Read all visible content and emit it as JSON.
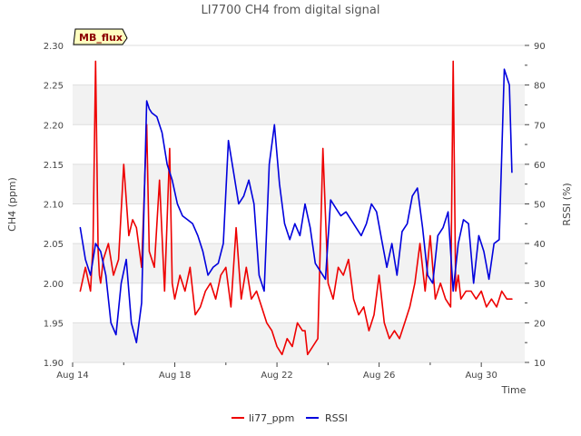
{
  "chart_data": {
    "type": "line",
    "title": "LI7700 CH4 from digital signal",
    "badge": "MB_flux",
    "xlabel": "Time",
    "ylabel": "CH4 (ppm)",
    "y2label": "RSSI (%)",
    "xlim": [
      14,
      31.7
    ],
    "ylim": [
      1.9,
      2.3
    ],
    "y2lim": [
      10,
      90
    ],
    "x_ticks": [
      {
        "value": 14,
        "label": "Aug 14"
      },
      {
        "value": 18,
        "label": "Aug 18"
      },
      {
        "value": 22,
        "label": "Aug 22"
      },
      {
        "value": 26,
        "label": "Aug 26"
      },
      {
        "value": 30,
        "label": "Aug 30"
      }
    ],
    "y_ticks": [
      "1.90",
      "1.95",
      "2.00",
      "2.05",
      "2.10",
      "2.15",
      "2.20",
      "2.25",
      "2.30"
    ],
    "y2_ticks": [
      "10",
      "20",
      "30",
      "40",
      "50",
      "60",
      "70",
      "80",
      "90"
    ],
    "colors": {
      "li77_ppm": "#ee0000",
      "RSSI": "#0000dd",
      "band": "#f2f2f2",
      "badge_fill": "#ffffc0",
      "badge_text": "#8b0000"
    },
    "legend_position": "bottom-center",
    "series": [
      {
        "name": "li77_ppm",
        "axis": "left",
        "x": [
          14.3,
          14.5,
          14.7,
          14.8,
          14.9,
          15.0,
          15.05,
          15.1,
          15.2,
          15.4,
          15.6,
          15.8,
          16.0,
          16.2,
          16.35,
          16.5,
          16.7,
          16.9,
          17.0,
          17.2,
          17.4,
          17.6,
          17.8,
          17.9,
          18.0,
          18.2,
          18.4,
          18.6,
          18.8,
          19.0,
          19.2,
          19.4,
          19.6,
          19.8,
          20.0,
          20.2,
          20.4,
          20.6,
          20.8,
          21.0,
          21.2,
          21.4,
          21.6,
          21.8,
          22.0,
          22.2,
          22.4,
          22.6,
          22.8,
          23.0,
          23.1,
          23.2,
          23.4,
          23.6,
          23.8,
          24.0,
          24.2,
          24.4,
          24.6,
          24.8,
          25.0,
          25.2,
          25.4,
          25.6,
          25.8,
          26.0,
          26.2,
          26.4,
          26.6,
          26.8,
          27.0,
          27.2,
          27.4,
          27.6,
          27.8,
          28.0,
          28.2,
          28.4,
          28.6,
          28.8,
          28.9,
          29.0,
          29.1,
          29.2,
          29.4,
          29.6,
          29.8,
          30.0,
          30.2,
          30.4,
          30.6,
          30.8,
          31.0,
          31.2
        ],
        "values": [
          1.99,
          2.02,
          1.99,
          2.05,
          2.28,
          2.04,
          2.01,
          2.0,
          2.03,
          2.05,
          2.01,
          2.03,
          2.15,
          2.06,
          2.08,
          2.07,
          2.02,
          2.2,
          2.04,
          2.02,
          2.13,
          1.99,
          2.17,
          2.0,
          1.98,
          2.01,
          1.99,
          2.02,
          1.96,
          1.97,
          1.99,
          2.0,
          1.98,
          2.01,
          2.02,
          1.97,
          2.07,
          1.98,
          2.02,
          1.98,
          1.99,
          1.97,
          1.95,
          1.94,
          1.92,
          1.91,
          1.93,
          1.92,
          1.95,
          1.94,
          1.94,
          1.91,
          1.92,
          1.93,
          2.17,
          2.0,
          1.98,
          2.02,
          2.01,
          2.03,
          1.98,
          1.96,
          1.97,
          1.94,
          1.96,
          2.01,
          1.95,
          1.93,
          1.94,
          1.93,
          1.95,
          1.97,
          2.0,
          2.05,
          1.99,
          2.06,
          1.98,
          2.0,
          1.98,
          1.97,
          2.28,
          1.99,
          2.01,
          1.98,
          1.99,
          1.99,
          1.98,
          1.99,
          1.97,
          1.98,
          1.97,
          1.99,
          1.98,
          1.98
        ]
      },
      {
        "name": "RSSI",
        "axis": "right",
        "x": [
          14.3,
          14.5,
          14.7,
          14.9,
          15.1,
          15.3,
          15.5,
          15.7,
          15.9,
          16.1,
          16.3,
          16.5,
          16.7,
          16.9,
          17.0,
          17.1,
          17.3,
          17.5,
          17.7,
          17.9,
          18.1,
          18.3,
          18.5,
          18.7,
          18.9,
          19.1,
          19.3,
          19.5,
          19.7,
          19.9,
          20.1,
          20.3,
          20.5,
          20.7,
          20.9,
          21.1,
          21.3,
          21.5,
          21.7,
          21.9,
          22.1,
          22.3,
          22.5,
          22.7,
          22.9,
          23.1,
          23.3,
          23.5,
          23.7,
          23.9,
          24.1,
          24.3,
          24.5,
          24.7,
          24.9,
          25.1,
          25.3,
          25.5,
          25.7,
          25.9,
          26.1,
          26.3,
          26.5,
          26.7,
          26.9,
          27.1,
          27.3,
          27.5,
          27.7,
          27.9,
          28.1,
          28.3,
          28.5,
          28.7,
          28.9,
          29.1,
          29.3,
          29.5,
          29.7,
          29.9,
          30.1,
          30.3,
          30.5,
          30.7,
          30.9,
          31.1,
          31.2
        ],
        "values": [
          44,
          36,
          32,
          40,
          38,
          32,
          20,
          17,
          30,
          36,
          20,
          15,
          25,
          76,
          74,
          73,
          72,
          68,
          60,
          56,
          50,
          47,
          46,
          45,
          42,
          38,
          32,
          34,
          35,
          40,
          66,
          58,
          50,
          52,
          56,
          50,
          32,
          28,
          60,
          70,
          55,
          45,
          41,
          45,
          42,
          50,
          44,
          35,
          33,
          31,
          51,
          49,
          47,
          48,
          46,
          44,
          42,
          45,
          50,
          48,
          41,
          34,
          40,
          32,
          43,
          45,
          52,
          54,
          44,
          32,
          30,
          42,
          44,
          48,
          28,
          40,
          46,
          45,
          30,
          42,
          38,
          31,
          40,
          41,
          84,
          80,
          58
        ]
      }
    ]
  }
}
